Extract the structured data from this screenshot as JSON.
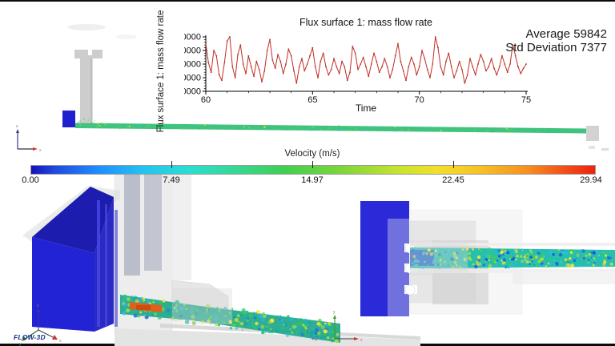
{
  "chart_data": {
    "type": "line",
    "title": "Flux surface 1: mass flow rate",
    "xlabel": "Time",
    "ylabel": "Flux surface 1: mass flow rate",
    "xlim": [
      60,
      75
    ],
    "ylim": [
      40000,
      80000
    ],
    "xticks": [
      60,
      65,
      70,
      75
    ],
    "yticks": [
      40000,
      50000,
      60000,
      70000,
      80000
    ],
    "grid": false,
    "legend": "none",
    "line_color": "#bf2e25",
    "series": [
      {
        "name": "Flux surface 1: mass flow rate",
        "x_start": 60,
        "x_step": 0.125,
        "values": [
          75000,
          61000,
          54000,
          70000,
          66000,
          52000,
          48000,
          61000,
          77000,
          80000,
          58000,
          50000,
          67000,
          74000,
          60000,
          53000,
          66000,
          58000,
          51000,
          62000,
          56000,
          47000,
          55000,
          70000,
          78000,
          63000,
          57000,
          67000,
          62000,
          53000,
          60000,
          71000,
          66000,
          55000,
          46000,
          58000,
          64000,
          55000,
          60000,
          66000,
          72000,
          58000,
          50000,
          62000,
          68000,
          58000,
          52000,
          56000,
          64000,
          58000,
          53000,
          62000,
          58000,
          48000,
          54000,
          73000,
          68000,
          56000,
          60000,
          65000,
          58000,
          51000,
          60000,
          68000,
          62000,
          54000,
          58000,
          64000,
          58000,
          50000,
          56000,
          66000,
          75000,
          62000,
          55000,
          48000,
          58000,
          65000,
          60000,
          52000,
          58000,
          70000,
          64000,
          56000,
          50000,
          60000,
          80000,
          72000,
          58000,
          52000,
          62000,
          68000,
          58000,
          50000,
          55000,
          62000,
          56000,
          46000,
          52000,
          64000,
          58000,
          52000,
          60000,
          67000,
          62000,
          55000,
          58000,
          64000,
          57000,
          52000,
          58000,
          66000,
          60000,
          54000,
          60000,
          74000,
          66000,
          58000,
          53000,
          57000,
          60000
        ]
      }
    ],
    "annotations": [
      "Average 59842",
      "Std Deviation 7377"
    ]
  },
  "stats": {
    "line1": "Average 59842",
    "line2": "Std Deviation 7377"
  },
  "colorbar": {
    "title": "Velocity (m/s)",
    "ticks": [
      "0.00",
      "7.49",
      "14.97",
      "22.45",
      "29.94"
    ],
    "values": [
      0.0,
      7.49,
      14.97,
      22.45,
      29.94
    ],
    "colors": [
      "#1212bb 0%",
      "#1f48dd 4%",
      "#1f8fff 12%",
      "#22c4f0 20%",
      "#2adfd0 28%",
      "#35d896 36%",
      "#3fd04f 45%",
      "#7ed63a 55%",
      "#c6e32f 65%",
      "#f2e02a 72%",
      "#f7bf25 80%",
      "#f78f1e 88%",
      "#f4541a 94%",
      "#ee2211 100%"
    ]
  },
  "logo": "FLOW-3D",
  "views": {
    "side": {
      "flow_colors": [
        "#35b98a",
        "#4cc454",
        "#2fbfd0",
        "#8fd24a",
        "#e8e13a"
      ],
      "box_color": "#2020d0"
    },
    "bottom_left": {
      "flow_colors": [
        "#29c180",
        "#37c94b",
        "#26b6e0",
        "#a6dd3f",
        "#ffe23a",
        "#1f74e0",
        "#18a7a0"
      ],
      "box_color": "#2323d6"
    },
    "bottom_right": {
      "flow_colors": [
        "#2ec4b0",
        "#3fcf52",
        "#29bde8",
        "#b8e03c",
        "#ffe23a",
        "#1b5fd8"
      ],
      "box_color": "#2a2ad8"
    },
    "axis_labels": {
      "x": "x",
      "y": "y",
      "z": "z"
    }
  }
}
